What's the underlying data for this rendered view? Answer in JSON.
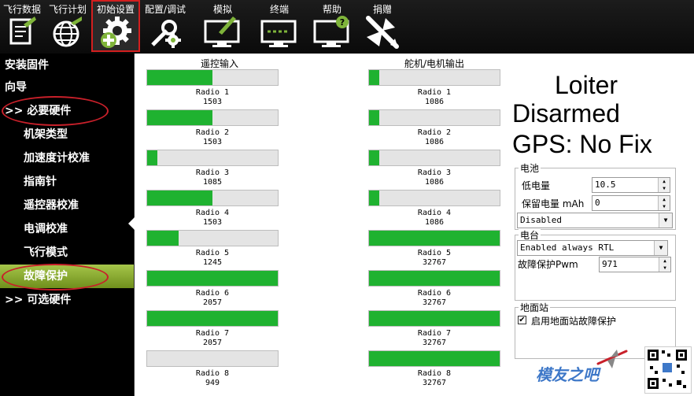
{
  "toolbar": {
    "items": [
      {
        "label": "飞行数据",
        "icon": "flight-data-icon"
      },
      {
        "label": "飞行计划",
        "icon": "globe-icon"
      },
      {
        "label": "初始设置",
        "icon": "gear-plus-icon"
      },
      {
        "label": "配置/调试",
        "icon": "wrench-gear-icon"
      },
      {
        "label": "模拟",
        "icon": "simulation-monitor-icon"
      },
      {
        "label": "终端",
        "icon": "terminal-monitor-icon"
      },
      {
        "label": "帮助",
        "icon": "help-monitor-icon"
      },
      {
        "label": "捐赠",
        "icon": "airplane-icon"
      }
    ],
    "active_index": 2
  },
  "sidebar": {
    "items": [
      {
        "label": "安装固件"
      },
      {
        "label": "向导"
      },
      {
        "label": ">> 必要硬件"
      },
      {
        "label": "机架类型"
      },
      {
        "label": "加速度计校准"
      },
      {
        "label": "指南针"
      },
      {
        "label": "遥控器校准"
      },
      {
        "label": "电调校准"
      },
      {
        "label": "飞行模式"
      },
      {
        "label": "故障保护"
      },
      {
        "label": ">> 可选硬件"
      }
    ],
    "selected_index": 9
  },
  "radio_input": {
    "title": "遥控输入",
    "channels": [
      {
        "name": "Radio 1",
        "value": "1503",
        "fill": 0.5
      },
      {
        "name": "Radio 2",
        "value": "1503",
        "fill": 0.5
      },
      {
        "name": "Radio 3",
        "value": "1085",
        "fill": 0.08
      },
      {
        "name": "Radio 4",
        "value": "1503",
        "fill": 0.5
      },
      {
        "name": "Radio 5",
        "value": "1245",
        "fill": 0.24
      },
      {
        "name": "Radio 6",
        "value": "2057",
        "fill": 1.0
      },
      {
        "name": "Radio 7",
        "value": "2057",
        "fill": 1.0
      },
      {
        "name": "Radio 8",
        "value": "949",
        "fill": 0.0
      }
    ]
  },
  "servo_output": {
    "title": "舵机/电机输出",
    "channels": [
      {
        "name": "Radio 1",
        "value": "1086",
        "fill": 0.08
      },
      {
        "name": "Radio 2",
        "value": "1086",
        "fill": 0.08
      },
      {
        "name": "Radio 3",
        "value": "1086",
        "fill": 0.08
      },
      {
        "name": "Radio 4",
        "value": "1086",
        "fill": 0.08
      },
      {
        "name": "Radio 5",
        "value": "32767",
        "fill": 1.0
      },
      {
        "name": "Radio 6",
        "value": "32767",
        "fill": 1.0
      },
      {
        "name": "Radio 7",
        "value": "32767",
        "fill": 1.0
      },
      {
        "name": "Radio 8",
        "value": "32767",
        "fill": 1.0
      }
    ]
  },
  "status": {
    "mode": "Loiter",
    "armed": "Disarmed",
    "gps": "GPS: No Fix"
  },
  "battery": {
    "title": "电池",
    "low_voltage_label": "低电量",
    "low_voltage_value": "10.5",
    "reserved_mah_label": "保留电量 mAh",
    "reserved_mah_value": "0",
    "action": "Disabled"
  },
  "radio": {
    "title": "电台",
    "action": "Enabled always RTL",
    "fs_pwm_label": "故障保护Pwm",
    "fs_pwm_value": "971"
  },
  "gcs": {
    "title": "地面站",
    "enable_label": "启用地面站故障保护",
    "enabled": true,
    "check_glyph": "✔"
  },
  "watermark": {
    "text": "模友之吧",
    "color": "#3e78c8"
  },
  "colors": {
    "bar_fill": "#1fb230",
    "selected_sidebar": "#8fae33",
    "highlight_ring": "#c8202a"
  }
}
